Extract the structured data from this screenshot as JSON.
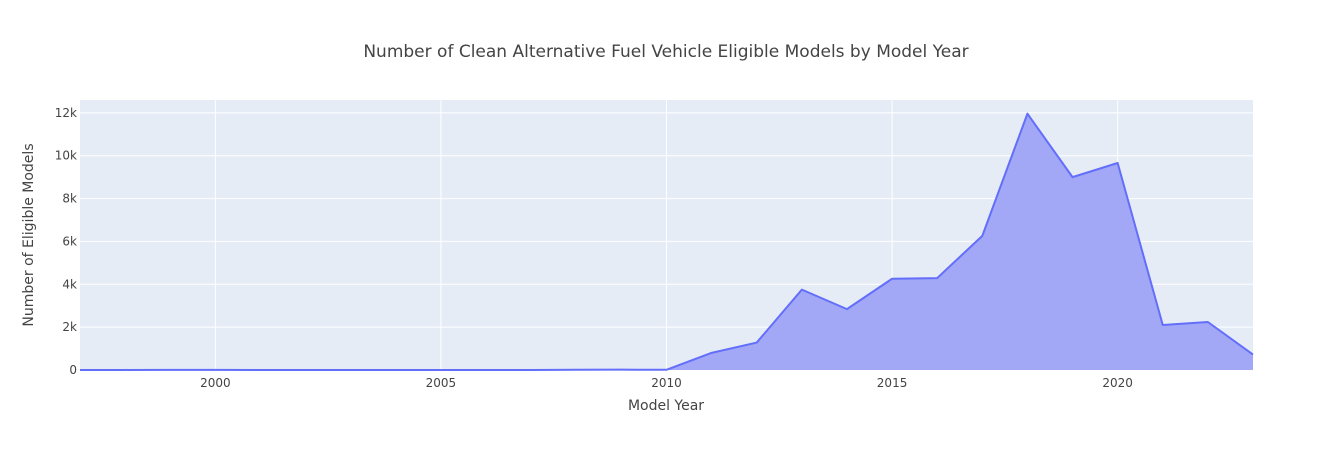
{
  "chart_data": {
    "type": "area",
    "title": "Number of Clean Alternative Fuel Vehicle Eligible Models by Model Year",
    "xlabel": "Model Year",
    "ylabel": "Number of Eligible Models",
    "xlim": [
      1997,
      2023
    ],
    "ylim": [
      0,
      12600
    ],
    "x_ticks": [
      2000,
      2005,
      2010,
      2015,
      2020
    ],
    "x_tick_labels": [
      "2000",
      "2005",
      "2010",
      "2015",
      "2020"
    ],
    "y_ticks": [
      0,
      2000,
      4000,
      6000,
      8000,
      10000,
      12000
    ],
    "y_tick_labels": [
      "0",
      "2k",
      "4k",
      "6k",
      "8k",
      "10k",
      "12k"
    ],
    "grid": true,
    "colors": {
      "line": "#636efa",
      "fill": "#a2a8f6",
      "plot_bg": "#e5ecf6",
      "grid": "#ffffff"
    },
    "x": [
      1997,
      1998,
      1999,
      2000,
      2001,
      2002,
      2003,
      2004,
      2005,
      2006,
      2007,
      2008,
      2009,
      2010,
      2011,
      2012,
      2013,
      2014,
      2015,
      2016,
      2017,
      2018,
      2019,
      2020,
      2021,
      2022,
      2023
    ],
    "values": [
      1,
      3,
      5,
      5,
      2,
      1,
      2,
      3,
      2,
      1,
      1,
      10,
      15,
      10,
      800,
      1280,
      3750,
      2840,
      4260,
      4290,
      6260,
      11960,
      9000,
      9660,
      2100,
      2240,
      720
    ]
  }
}
